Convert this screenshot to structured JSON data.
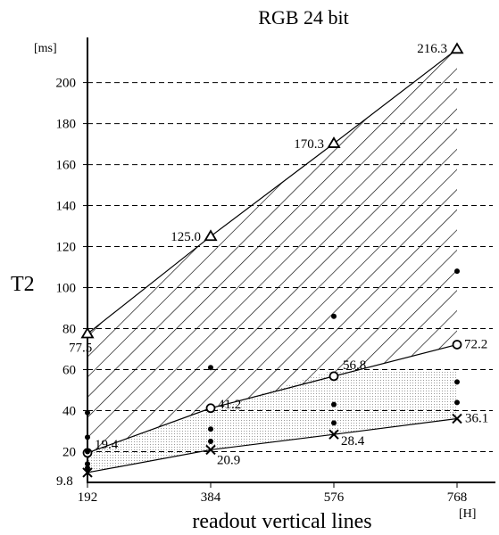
{
  "chart_data": {
    "type": "scatter",
    "title": "RGB  24 bit",
    "xlabel": "readout vertical lines",
    "ylabel": "T2",
    "y_unit": "[ms]",
    "x_unit": "[H]",
    "x_ticks": [
      "192",
      "384",
      "576",
      "768"
    ],
    "y_ticks": [
      "20",
      "40",
      "60",
      "80",
      "100",
      "120",
      "140",
      "160",
      "180",
      "200"
    ],
    "x_values": [
      192,
      384,
      576,
      768
    ],
    "y_tick_values": [
      20,
      40,
      60,
      80,
      100,
      120,
      140,
      160,
      180,
      200
    ],
    "xlim": [
      192,
      768
    ],
    "ylim": [
      5,
      222
    ],
    "grid": "horizontal dashed",
    "series": [
      {
        "marker": "triangle",
        "x": [
          192,
          384,
          576,
          768
        ],
        "y": [
          77.5,
          125.0,
          170.3,
          216.3
        ],
        "labels": [
          "77.5",
          "125.0",
          "170.3",
          "216.3"
        ]
      },
      {
        "marker": "circle",
        "x": [
          192,
          384,
          576,
          768
        ],
        "y": [
          19.4,
          41.2,
          56.8,
          72.2
        ],
        "labels": [
          "19.4",
          "41.2",
          "56.8",
          "72.2"
        ]
      },
      {
        "marker": "cross",
        "x": [
          192,
          384,
          576,
          768
        ],
        "y": [
          9.8,
          20.9,
          28.4,
          36.1
        ],
        "labels": [
          "9.8",
          "20.9",
          "28.4",
          "36.1"
        ]
      },
      {
        "marker": "dot",
        "x": [
          192,
          192,
          192,
          192,
          192,
          384,
          384,
          384,
          576,
          576,
          576,
          768,
          768,
          768
        ],
        "y": [
          39,
          27,
          20,
          14,
          12,
          61,
          31,
          25,
          86,
          43,
          34,
          108,
          54,
          44
        ]
      }
    ],
    "regions": [
      {
        "pattern": "diagonal hatch",
        "bounds": [
          "triangle",
          "circle"
        ]
      },
      {
        "pattern": "dotted",
        "upper_y": [
          20,
          40,
          60,
          60
        ]
      }
    ]
  }
}
